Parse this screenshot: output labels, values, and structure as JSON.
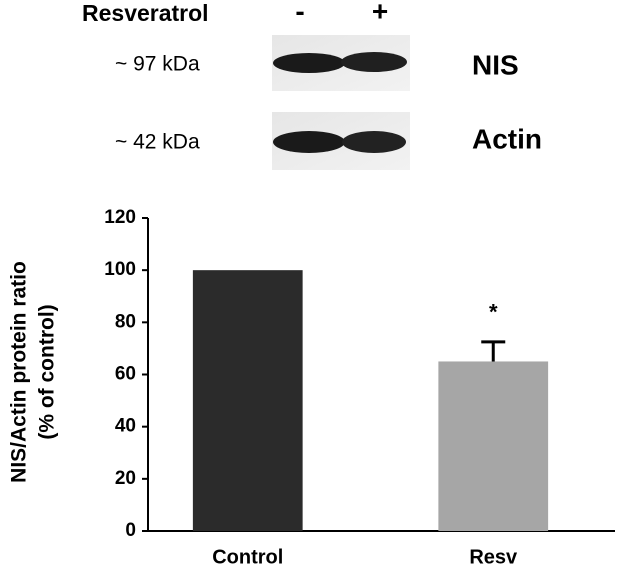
{
  "blot": {
    "treatment_label": "Resveratrol",
    "lanes": [
      "-",
      "+"
    ],
    "bands": [
      {
        "size": "~ 97 kDa",
        "protein": "NIS"
      },
      {
        "size": "~ 42 kDa",
        "protein": "Actin"
      }
    ]
  },
  "chart_data": {
    "type": "bar",
    "ylabel": [
      "NIS/Actin protein ratio",
      "(% of control)"
    ],
    "categories": [
      "Control",
      "Resv"
    ],
    "values": [
      100,
      65
    ],
    "errors": [
      null,
      7.5
    ],
    "colors": [
      "#2b2b2b",
      "#a6a6a6"
    ],
    "annotations": [
      null,
      "*"
    ],
    "ylim": [
      0,
      120
    ],
    "yticks": [
      0,
      20,
      40,
      60,
      80,
      100,
      120
    ],
    "grid": false
  }
}
